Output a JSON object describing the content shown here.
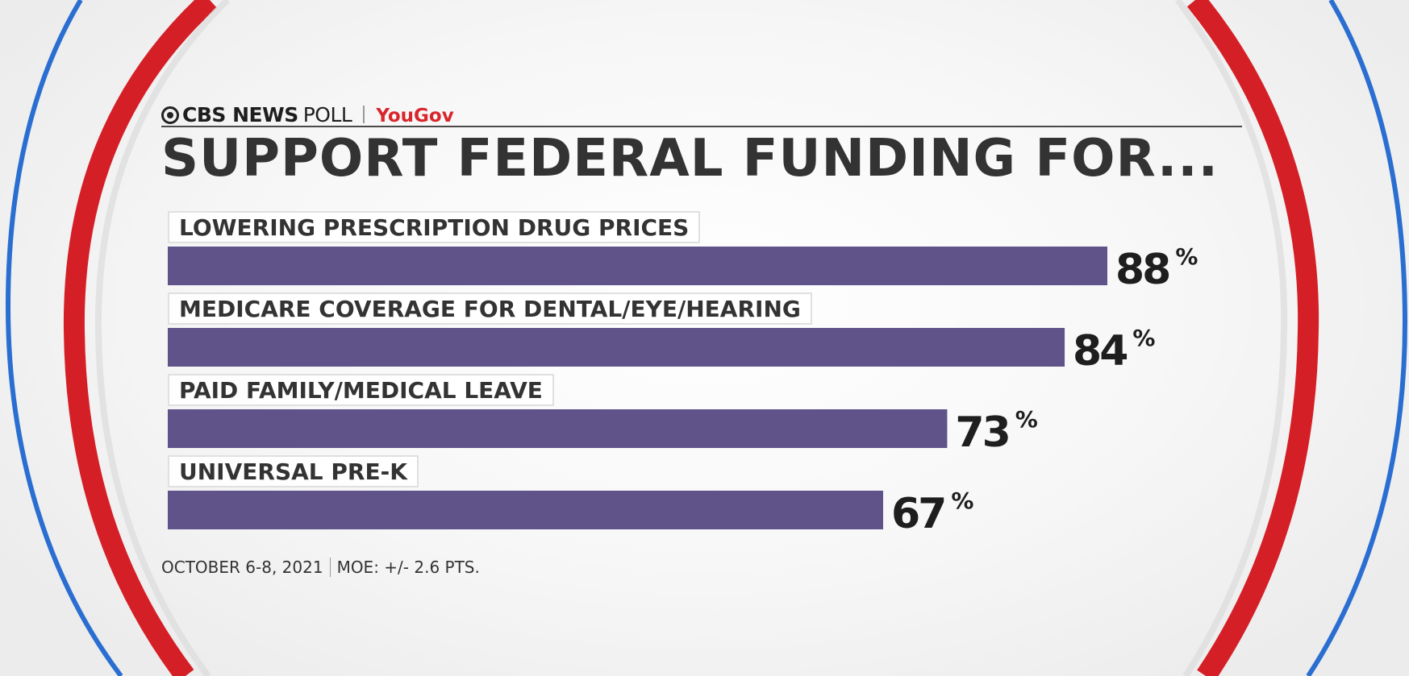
{
  "header": {
    "brand_network": "CBS NEWS",
    "brand_poll": "POLL",
    "brand_partner": "YouGov",
    "logo_icon": "cbs-eye-icon"
  },
  "title": "SUPPORT FEDERAL FUNDING FOR...",
  "footer": {
    "dates": "OCTOBER 6-8, 2021",
    "moe": "MOE: +/- 2.6 PTS."
  },
  "colors": {
    "bar": "#5f5389",
    "ring_red": "#d51f26",
    "ring_blue": "#2a6ed1",
    "partner_red": "#d9262c"
  },
  "chart_data": {
    "type": "bar",
    "orientation": "horizontal",
    "title": "SUPPORT FEDERAL FUNDING FOR...",
    "categories": [
      "LOWERING PRESCRIPTION DRUG PRICES",
      "MEDICARE COVERAGE FOR DENTAL/EYE/HEARING",
      "PAID FAMILY/MEDICAL LEAVE",
      "UNIVERSAL PRE-K"
    ],
    "values": [
      88,
      84,
      73,
      67
    ],
    "value_labels": [
      "88",
      "84",
      "73",
      "67"
    ],
    "unit": "%",
    "xlim": [
      0,
      100
    ],
    "grid": false,
    "legend": "none"
  }
}
